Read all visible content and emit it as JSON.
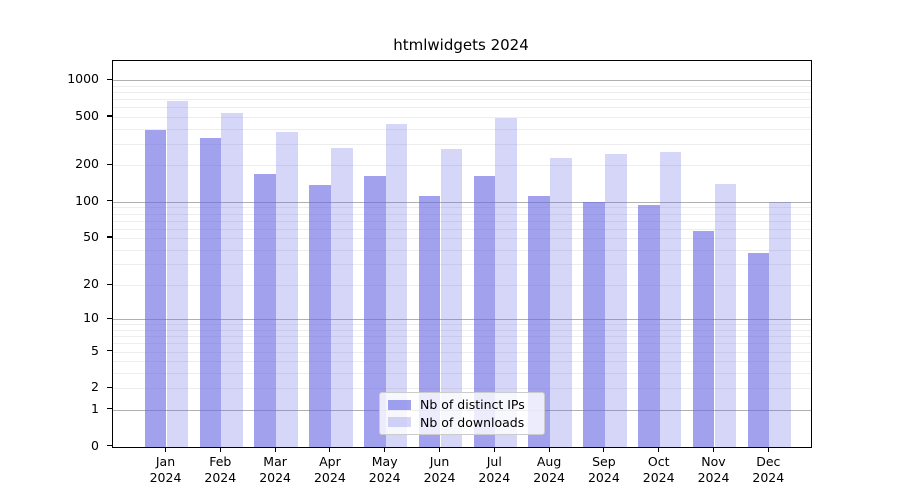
{
  "chart_data": {
    "type": "bar",
    "title": "htmlwidgets 2024",
    "categories": [
      "Jan",
      "Feb",
      "Mar",
      "Apr",
      "May",
      "Jun",
      "Jul",
      "Aug",
      "Sep",
      "Oct",
      "Nov",
      "Dec"
    ],
    "year_label": "2024",
    "series": [
      {
        "name": "Nb of distinct IPs",
        "color": "rgba(104,104,228,0.62)",
        "values": [
          398,
          337,
          173,
          139,
          166,
          113,
          166,
          113,
          100,
          96,
          58,
          38
        ]
      },
      {
        "name": "Nb of downloads",
        "color": "rgba(104,104,228,0.27)",
        "values": [
          686,
          540,
          377,
          282,
          442,
          278,
          500,
          233,
          252,
          261,
          141,
          101
        ]
      }
    ],
    "yscale": "log1p",
    "ylim": [
      0,
      1440
    ],
    "y_ticks": [
      0,
      1,
      2,
      5,
      10,
      20,
      50,
      100,
      200,
      500,
      1000
    ],
    "y_major_gridlines": [
      1,
      10,
      100,
      1000
    ],
    "grid": "on",
    "legend_position": "lower center",
    "colors": {
      "major_grid": "#b0b0b0",
      "minor_grid": "#ededed",
      "axis": "#000000",
      "background": "#ffffff"
    }
  }
}
